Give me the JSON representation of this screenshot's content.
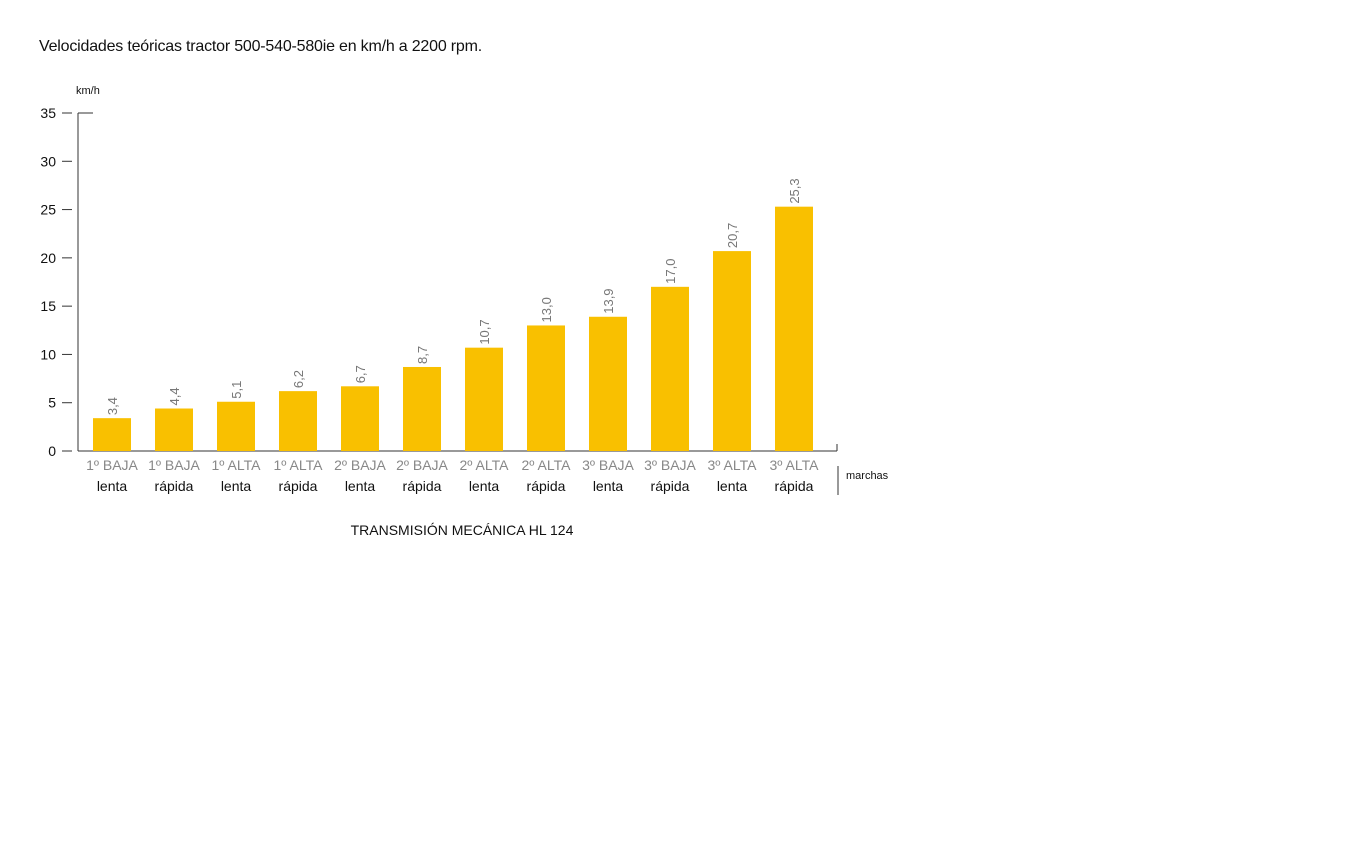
{
  "chart_data": {
    "type": "bar",
    "title": "Velocidades teóricas tractor 500-540-580ie en km/h a 2200 rpm.",
    "subtitle": "TRANSMISIÓN MECÁNICA HL 124",
    "ylabel": "km/h",
    "xlabel": "marchas",
    "ylim": [
      0,
      35
    ],
    "yticks": [
      0,
      5,
      10,
      15,
      20,
      25,
      30,
      35
    ],
    "grid": false,
    "categories": [
      {
        "top": "1º BAJA",
        "bottom": "lenta"
      },
      {
        "top": "1º BAJA",
        "bottom": "rápida"
      },
      {
        "top": "1º ALTA",
        "bottom": "lenta"
      },
      {
        "top": "1º ALTA",
        "bottom": "rápida"
      },
      {
        "top": "2º BAJA",
        "bottom": "lenta"
      },
      {
        "top": "2º BAJA",
        "bottom": "rápida"
      },
      {
        "top": "2º ALTA",
        "bottom": "lenta"
      },
      {
        "top": "2º ALTA",
        "bottom": "rápida"
      },
      {
        "top": "3º BAJA",
        "bottom": "lenta"
      },
      {
        "top": "3º BAJA",
        "bottom": "rápida"
      },
      {
        "top": "3º ALTA",
        "bottom": "lenta"
      },
      {
        "top": "3º ALTA",
        "bottom": "rápida"
      }
    ],
    "values": [
      3.4,
      4.4,
      5.1,
      6.2,
      6.7,
      8.7,
      10.7,
      13.0,
      13.9,
      17.0,
      20.7,
      25.3
    ],
    "value_labels": [
      "3,4",
      "4,4",
      "5,1",
      "6,2",
      "6,7",
      "8,7",
      "10,7",
      "13,0",
      "13,9",
      "17,0",
      "20,7",
      "25,3"
    ],
    "colors": {
      "bar": "#F9C000",
      "value_label": "#777777",
      "category_top": "#888888",
      "category_bottom": "#111111",
      "axis": "#333333"
    }
  }
}
